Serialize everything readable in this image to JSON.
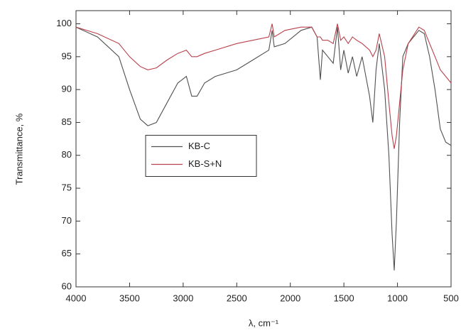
{
  "chart_data": {
    "type": "line",
    "x_label": "λ, cm⁻¹",
    "y_label": "Transmittance, %",
    "x": [
      4000,
      3800,
      3600,
      3500,
      3400,
      3330,
      3250,
      3150,
      3050,
      2970,
      2920,
      2870,
      2800,
      2700,
      2500,
      2350,
      2200,
      2170,
      2150,
      2050,
      1900,
      1800,
      1750,
      1720,
      1700,
      1650,
      1600,
      1560,
      1530,
      1500,
      1460,
      1420,
      1380,
      1330,
      1260,
      1230,
      1200,
      1170,
      1120,
      1080,
      1050,
      1030,
      1010,
      980,
      950,
      900,
      800,
      750,
      700,
      650,
      600,
      550,
      500
    ],
    "series": [
      {
        "name": "KB-C",
        "color": "#505050",
        "values": [
          99.5,
          98,
          95,
          90,
          85.5,
          84.5,
          85,
          88,
          91,
          92,
          89,
          89,
          91,
          92,
          93,
          94.5,
          96,
          99,
          96.5,
          97,
          99,
          99.5,
          98,
          91.5,
          96,
          95,
          94,
          99.5,
          93,
          96,
          92.5,
          95,
          92,
          95,
          89,
          85,
          93,
          97,
          90,
          80,
          68,
          62.5,
          70,
          85,
          95,
          97,
          99,
          98.5,
          95,
          90,
          84,
          82,
          81.5
        ]
      },
      {
        "name": "KB-S+N",
        "color": "#b8404a",
        "values": [
          99.5,
          98.5,
          97,
          95,
          93.5,
          93,
          93.3,
          94.5,
          95.5,
          96,
          95,
          95,
          95.5,
          96,
          97,
          97.5,
          98,
          100,
          98,
          99,
          99.5,
          99.5,
          98,
          98,
          97.5,
          97.5,
          97,
          100,
          97.5,
          98,
          97,
          98,
          97.5,
          97,
          96,
          95,
          96,
          98.5,
          95,
          88,
          83,
          81,
          83,
          88,
          93,
          97,
          99.5,
          99,
          97,
          95,
          93,
          92,
          91
        ]
      }
    ],
    "xlim": [
      4000,
      500
    ],
    "xticks": [
      4000,
      3500,
      3000,
      2500,
      2000,
      1500,
      1000,
      500
    ],
    "ylim": [
      60,
      102
    ],
    "yticks": [
      60,
      65,
      70,
      75,
      80,
      85,
      90,
      95,
      100
    ],
    "legend_position": "center left"
  }
}
